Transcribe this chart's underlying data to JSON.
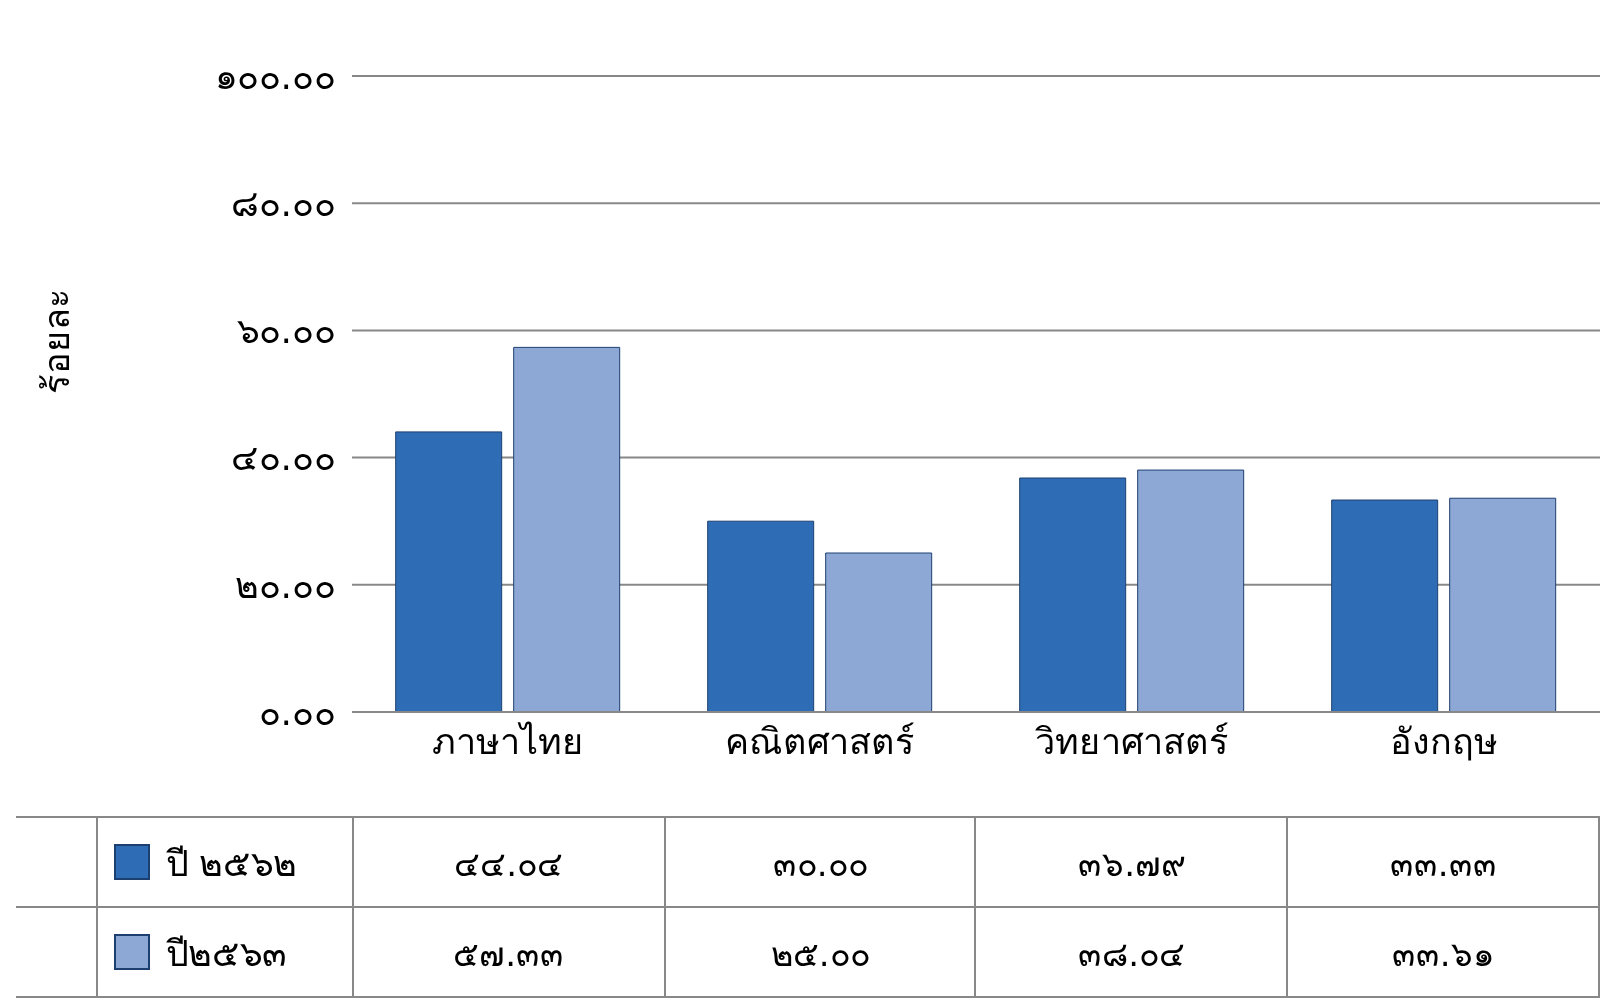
{
  "chart_data": {
    "type": "bar",
    "ylabel": "ร้อยละ",
    "categories": [
      "ภาษาไทย",
      "คณิตศาสตร์",
      "วิทยาศาสตร์",
      "อังกฤษ"
    ],
    "series": [
      {
        "name": "ปี ๒๕๖๒",
        "color": "#2f6cb6",
        "values": [
          44.04,
          30.0,
          36.79,
          33.33
        ],
        "value_labels": [
          "๔๔.๐๔",
          "๓๐.๐๐",
          "๓๖.๗๙",
          "๓๓.๓๓"
        ]
      },
      {
        "name": "ปี๒๕๖๓",
        "color": "#8ea8d6",
        "values": [
          57.33,
          25.0,
          38.04,
          33.61
        ],
        "value_labels": [
          "๕๗.๓๓",
          "๒๕.๐๐",
          "๓๘.๐๔",
          "๓๓.๖๑"
        ]
      }
    ],
    "ylim": [
      0,
      100
    ],
    "yticks": [
      {
        "value": 0,
        "label": "๐.๐๐"
      },
      {
        "value": 20,
        "label": "๒๐.๐๐"
      },
      {
        "value": 40,
        "label": "๔๐.๐๐"
      },
      {
        "value": 60,
        "label": "๖๐.๐๐"
      },
      {
        "value": 80,
        "label": "๘๐.๐๐"
      },
      {
        "value": 100,
        "label": "๑๐๐.๐๐"
      }
    ],
    "grid": "y",
    "legend": "bottom left"
  }
}
